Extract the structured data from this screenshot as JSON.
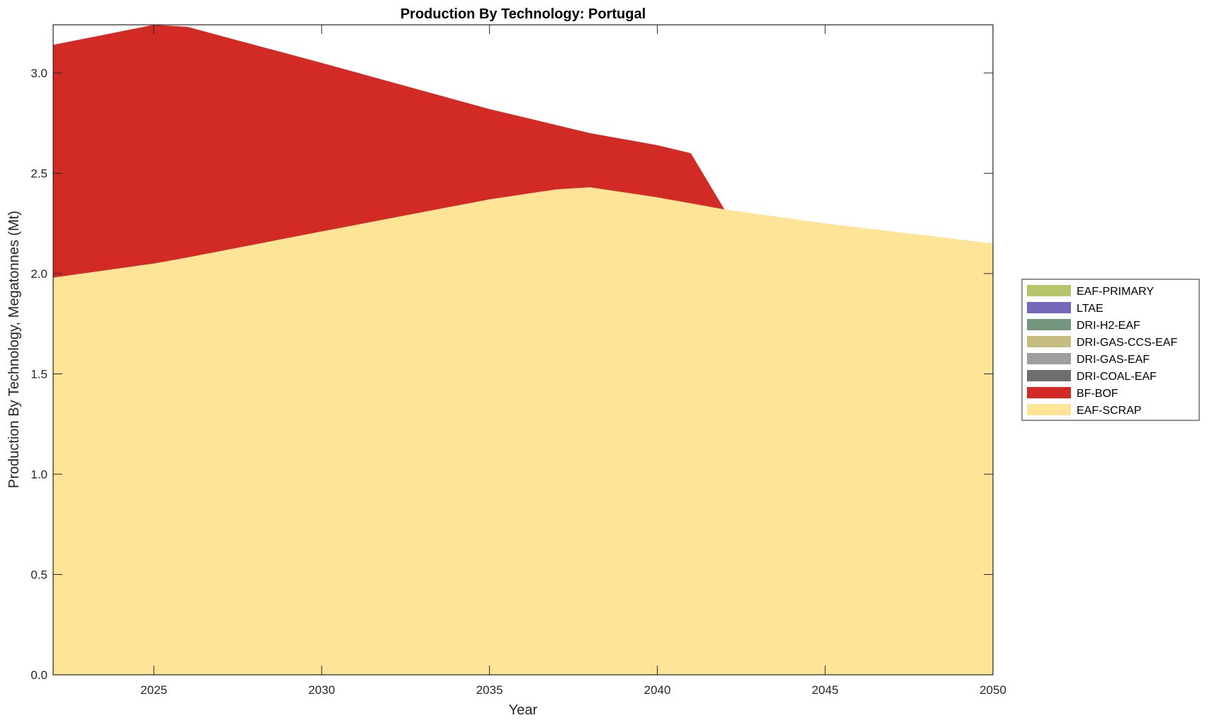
{
  "chart_data": {
    "type": "area",
    "stacked": true,
    "title": "Production By Technology: Portugal",
    "xlabel": "Year",
    "ylabel": "Production By Technology, Megatonnes (Mt)",
    "xlim": [
      2022,
      2050
    ],
    "ylim": [
      0,
      3.24
    ],
    "xticks": [
      2025,
      2030,
      2035,
      2040,
      2045,
      2050
    ],
    "yticks": [
      "0.0",
      "0.5",
      "1.0",
      "1.5",
      "2.0",
      "2.5",
      "3.0"
    ],
    "x": [
      2022,
      2025,
      2026,
      2030,
      2035,
      2037,
      2038,
      2040,
      2041,
      2042,
      2045,
      2050
    ],
    "series": [
      {
        "name": "EAF-SCRAP",
        "color": "#fee496",
        "values": [
          1.98,
          2.05,
          2.08,
          2.21,
          2.37,
          2.42,
          2.43,
          2.38,
          2.35,
          2.32,
          2.25,
          2.15
        ]
      },
      {
        "name": "BF-BOF",
        "color": "#d22b26",
        "values": [
          1.16,
          1.19,
          1.15,
          0.84,
          0.45,
          0.32,
          0.27,
          0.26,
          0.25,
          0,
          0,
          0
        ]
      },
      {
        "name": "DRI-COAL-EAF",
        "color": "#6e6e6e",
        "values": [
          0,
          0,
          0,
          0,
          0,
          0,
          0,
          0,
          0,
          0,
          0,
          0
        ]
      },
      {
        "name": "DRI-GAS-EAF",
        "color": "#9e9e9e",
        "values": [
          0,
          0,
          0,
          0,
          0,
          0,
          0,
          0,
          0,
          0,
          0,
          0
        ]
      },
      {
        "name": "DRI-GAS-CCS-EAF",
        "color": "#c6bc80",
        "values": [
          0,
          0,
          0,
          0,
          0,
          0,
          0,
          0,
          0,
          0,
          0,
          0
        ]
      },
      {
        "name": "DRI-H2-EAF",
        "color": "#73967c",
        "values": [
          0,
          0,
          0,
          0,
          0,
          0,
          0,
          0,
          0,
          0,
          0,
          0
        ]
      },
      {
        "name": "LTAE",
        "color": "#7468b8",
        "values": [
          0,
          0,
          0,
          0,
          0,
          0,
          0,
          0,
          0,
          0,
          0,
          0
        ]
      },
      {
        "name": "EAF-PRIMARY",
        "color": "#b8c46a",
        "values": [
          0,
          0,
          0,
          0,
          0,
          0,
          0,
          0,
          0,
          0,
          0,
          0
        ]
      }
    ],
    "legend": {
      "placement": "right",
      "entries": [
        "EAF-PRIMARY",
        "LTAE",
        "DRI-H2-EAF",
        "DRI-GAS-CCS-EAF",
        "DRI-GAS-EAF",
        "DRI-COAL-EAF",
        "BF-BOF",
        "EAF-SCRAP"
      ]
    },
    "grid": false
  }
}
